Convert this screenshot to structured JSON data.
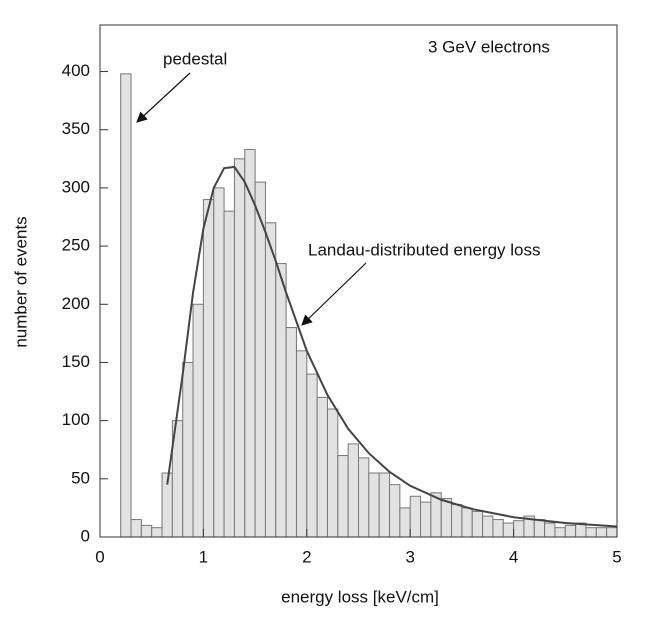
{
  "chart_data": {
    "type": "histogram",
    "ylabel": "number of events",
    "xlabel": "energy loss [keV/cm]",
    "annotations": [
      "pedestal",
      "Landau-distributed energy loss",
      "3 GeV electrons"
    ],
    "bins": [
      0.2,
      0.3,
      0.4,
      0.5,
      0.6,
      0.7,
      0.8,
      0.9,
      1.0,
      1.1,
      1.2,
      1.3,
      1.4,
      1.5,
      1.6,
      1.7,
      1.8,
      1.9,
      2.0,
      2.1,
      2.2,
      2.3,
      2.4,
      2.5,
      2.6,
      2.7,
      2.8,
      2.9,
      3.0,
      3.1,
      3.2,
      3.3,
      3.4,
      3.5,
      3.6,
      3.7,
      3.8,
      3.9,
      4.0,
      4.1,
      4.2,
      4.3,
      4.4,
      4.5,
      4.6,
      4.7,
      4.8,
      4.9,
      5.0
    ],
    "values": [
      398,
      15,
      10,
      8,
      55,
      100,
      150,
      200,
      290,
      300,
      280,
      325,
      333,
      305,
      270,
      235,
      180,
      160,
      140,
      120,
      110,
      70,
      80,
      68,
      55,
      55,
      45,
      25,
      35,
      30,
      38,
      33,
      28,
      25,
      22,
      18,
      15,
      12,
      14,
      18,
      15,
      12,
      8,
      10,
      12,
      8,
      8,
      8
    ],
    "color": "#e2e2e2",
    "curve": {
      "x": [
        0.65,
        0.8,
        0.9,
        1.0,
        1.1,
        1.2,
        1.3,
        1.4,
        1.5,
        1.6,
        1.7,
        1.8,
        2.0,
        2.2,
        2.4,
        2.6,
        2.8,
        3.0,
        3.3,
        3.6,
        4.0,
        4.5,
        5.0
      ],
      "values": [
        45,
        140,
        210,
        265,
        300,
        317,
        318,
        305,
        285,
        262,
        237,
        210,
        160,
        122,
        93,
        72,
        56,
        44,
        32,
        24,
        17,
        12,
        9
      ],
      "color": "#444444"
    },
    "xlim": [
      0,
      5
    ],
    "ylim": [
      0,
      440
    ],
    "xticks": [
      0,
      1,
      2,
      3,
      4,
      5
    ],
    "yticks": [
      0,
      50,
      100,
      150,
      200,
      250,
      300,
      350,
      400
    ]
  }
}
